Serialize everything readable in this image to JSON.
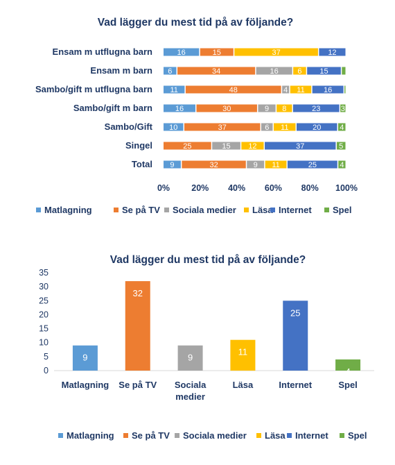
{
  "colors": {
    "Matlagning": "#5b9bd5",
    "Se på TV": "#ed7d31",
    "Sociala medier": "#a5a5a5",
    "Läsa": "#ffc000",
    "Internet": "#4472c4",
    "Spel": "#70ad47"
  },
  "chart_data": [
    {
      "type": "bar",
      "orientation": "horizontal-stacked-100",
      "title": "Vad lägger du mest tid på av följande?",
      "categories": [
        "Ensam m utflugna barn",
        "Ensam m barn",
        "Sambo/gift m utflugna barn",
        "Sambo/gift m barn",
        "Sambo/Gift",
        "Singel",
        "Total"
      ],
      "series": [
        {
          "name": "Matlagning",
          "values": [
            16,
            6,
            11,
            16,
            10,
            0,
            9
          ]
        },
        {
          "name": "Se på TV",
          "values": [
            15,
            34,
            48,
            30,
            37,
            25,
            32
          ]
        },
        {
          "name": "Sociala medier",
          "values": [
            0,
            16,
            4,
            9,
            6,
            15,
            9
          ]
        },
        {
          "name": "Läsa",
          "values": [
            37,
            6,
            11,
            8,
            11,
            12,
            11
          ]
        },
        {
          "name": "Internet",
          "values": [
            12,
            15,
            16,
            23,
            20,
            37,
            25
          ]
        },
        {
          "name": "Spel",
          "values": [
            0,
            2,
            1,
            3,
            4,
            5,
            4
          ]
        }
      ],
      "value_labels": [
        [
          "16",
          "15",
          "",
          "37",
          "12",
          ""
        ],
        [
          "6",
          "34",
          "16",
          "6",
          "15",
          ""
        ],
        [
          "11",
          "48",
          "4",
          "11",
          "16",
          ""
        ],
        [
          "16",
          "30",
          "9",
          "8",
          "23",
          "3"
        ],
        [
          "10",
          "37",
          "6",
          "11",
          "20",
          "4"
        ],
        [
          "",
          "25",
          "15",
          "12",
          "37",
          "5"
        ],
        [
          "9",
          "32",
          "9",
          "11",
          "25",
          "4"
        ]
      ],
      "x_ticks": [
        "0%",
        "20%",
        "40%",
        "60%",
        "80%",
        "100%"
      ],
      "xlim": [
        0,
        100
      ],
      "legend": [
        "Matlagning",
        "Se på TV",
        "Sociala medier",
        "Läsa",
        "Internet",
        "Spel"
      ],
      "legend_position": "bottom",
      "grid": false
    },
    {
      "type": "bar",
      "orientation": "vertical",
      "title": "Vad lägger du mest tid på av följande?",
      "categories": [
        "Matlagning",
        "Se på TV",
        "Sociala medier",
        "Läsa",
        "Internet",
        "Spel"
      ],
      "category_lines": [
        [
          "Matlagning"
        ],
        [
          "Se på TV"
        ],
        [
          "Sociala",
          "medier"
        ],
        [
          "Läsa"
        ],
        [
          "Internet"
        ],
        [
          "Spel"
        ]
      ],
      "values": [
        9,
        32,
        9,
        11,
        25,
        4
      ],
      "value_labels": [
        "9",
        "32",
        "9",
        "11",
        "25",
        "4"
      ],
      "y_ticks": [
        "0",
        "5",
        "10",
        "15",
        "20",
        "25",
        "30",
        "35"
      ],
      "ylim": [
        0,
        35
      ],
      "legend": [
        "Matlagning",
        "Se på TV",
        "Sociala medier",
        "Läsa",
        "Internet",
        "Spel"
      ],
      "legend_position": "bottom",
      "grid": false
    }
  ]
}
